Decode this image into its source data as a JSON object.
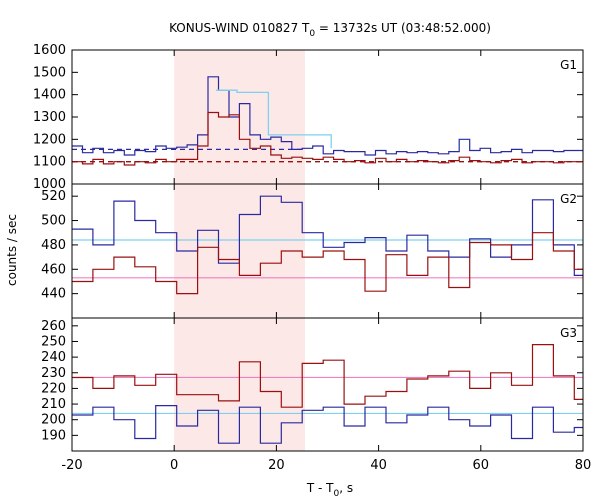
{
  "chart_data": {
    "type": "line",
    "title": "KONUS-WIND 010827 T",
    "title_sub": "0",
    "title_rest": " = 13732s UT (03:48:52.000)",
    "xlabel": "T - T",
    "xlabel_sub": "0",
    "xlabel_rest": ", s",
    "ylabel": "counts / sec",
    "xlim": [
      -20,
      80
    ],
    "x_ticks": [
      -20,
      0,
      20,
      40,
      60,
      80
    ],
    "highlight": {
      "x0": 0,
      "x1": 25.6,
      "color": "#fde8e8"
    },
    "colors": {
      "blue": "#2a2aa0",
      "red": "#9a1010",
      "cyan": "#7fd0ee",
      "pink": "#f080c0",
      "dash_blue": "#2a2aa0",
      "dash_red": "#9a1010"
    },
    "panels": [
      {
        "name": "G1",
        "ylim": [
          1000,
          1600
        ],
        "y_ticks": [
          1000,
          1100,
          1200,
          1300,
          1400,
          1500,
          1600
        ],
        "bin_width": 2.048,
        "x_start": -20,
        "series": [
          {
            "color": "blue",
            "values": [
              1170,
              1140,
              1160,
              1140,
              1150,
              1130,
              1150,
              1145,
              1170,
              1160,
              1165,
              1175,
              1220,
              1480,
              1420,
              1300,
              1360,
              1220,
              1200,
              1210,
              1190,
              1155,
              1160,
              1170,
              1135,
              1150,
              1145,
              1145,
              1130,
              1150,
              1135,
              1145,
              1140,
              1145,
              1140,
              1135,
              1145,
              1200,
              1150,
              1160,
              1140,
              1145,
              1155,
              1140,
              1150,
              1150,
              1145,
              1150,
              1150
            ]
          },
          {
            "color": "red",
            "values": [
              1100,
              1090,
              1110,
              1090,
              1100,
              1085,
              1100,
              1095,
              1110,
              1100,
              1110,
              1110,
              1170,
              1320,
              1300,
              1310,
              1200,
              1160,
              1170,
              1130,
              1115,
              1120,
              1115,
              1110,
              1120,
              1110,
              1100,
              1105,
              1095,
              1115,
              1100,
              1110,
              1100,
              1105,
              1100,
              1095,
              1105,
              1120,
              1105,
              1100,
              1095,
              1105,
              1110,
              1095,
              1100,
              1100,
              1095,
              1100,
              1100
            ]
          },
          {
            "color": "cyan",
            "segments": [
              [
                8.192,
                12.288,
                1420
              ],
              [
                12.288,
                18.432,
                1410
              ],
              [
                18.432,
                30.72,
                1220
              ]
            ]
          }
        ],
        "dashed": [
          {
            "color": "dash_blue",
            "y": 1155,
            "x0": -20,
            "x1": 25.6
          },
          {
            "color": "dash_red",
            "y": 1100,
            "x0": -20,
            "x1": 80
          }
        ],
        "label_tag": "G1"
      },
      {
        "name": "G2",
        "ylim": [
          420,
          530
        ],
        "y_ticks": [
          420,
          440,
          460,
          480,
          500,
          520
        ],
        "bin_width": 4.096,
        "x_start": -20,
        "series": [
          {
            "color": "blue",
            "values": [
              493,
              480,
              516,
              500,
              490,
              475,
              492,
              465,
              505,
              520,
              515,
              490,
              478,
              482,
              486,
              475,
              488,
              475,
              470,
              485,
              470,
              480,
              517,
              480,
              455,
              470,
              460,
              485,
              470,
              488,
              474,
              465,
              460,
              488,
              480
            ]
          },
          {
            "color": "red",
            "values": [
              450,
              460,
              470,
              462,
              450,
              440,
              478,
              468,
              455,
              465,
              475,
              470,
              475,
              468,
              442,
              472,
              455,
              470,
              445,
              482,
              480,
              468,
              490,
              475,
              460,
              470,
              462,
              435,
              450,
              460,
              430,
              450,
              460,
              460,
              460
            ]
          },
          {
            "color": "cyan",
            "hline": 484
          },
          {
            "color": "pink",
            "hline": 453
          }
        ],
        "label_tag": "G2"
      },
      {
        "name": "G3",
        "ylim": [
          180,
          265
        ],
        "y_ticks": [
          180,
          190,
          200,
          210,
          220,
          230,
          240,
          250,
          260
        ],
        "bin_width": 4.096,
        "x_start": -20,
        "series": [
          {
            "color": "blue",
            "values": [
              203,
              208,
              200,
              188,
              209,
              196,
              206,
              185,
              208,
              185,
              198,
              206,
              208,
              196,
              208,
              198,
              203,
              208,
              200,
              196,
              203,
              188,
              208,
              192,
              195,
              192,
              210,
              201,
              198,
              192,
              198,
              192,
              203,
              210,
              215
            ]
          },
          {
            "color": "red",
            "values": [
              227,
              220,
              228,
              222,
              229,
              216,
              216,
              212,
              237,
              218,
              208,
              236,
              238,
              210,
              215,
              218,
              226,
              228,
              231,
              220,
              230,
              222,
              248,
              228,
              213,
              232,
              210,
              225,
              230,
              222,
              230,
              210,
              255,
              212,
              218
            ]
          },
          {
            "color": "cyan",
            "hline": 204
          },
          {
            "color": "pink",
            "hline": 227
          }
        ],
        "label_tag": "G3"
      }
    ]
  }
}
